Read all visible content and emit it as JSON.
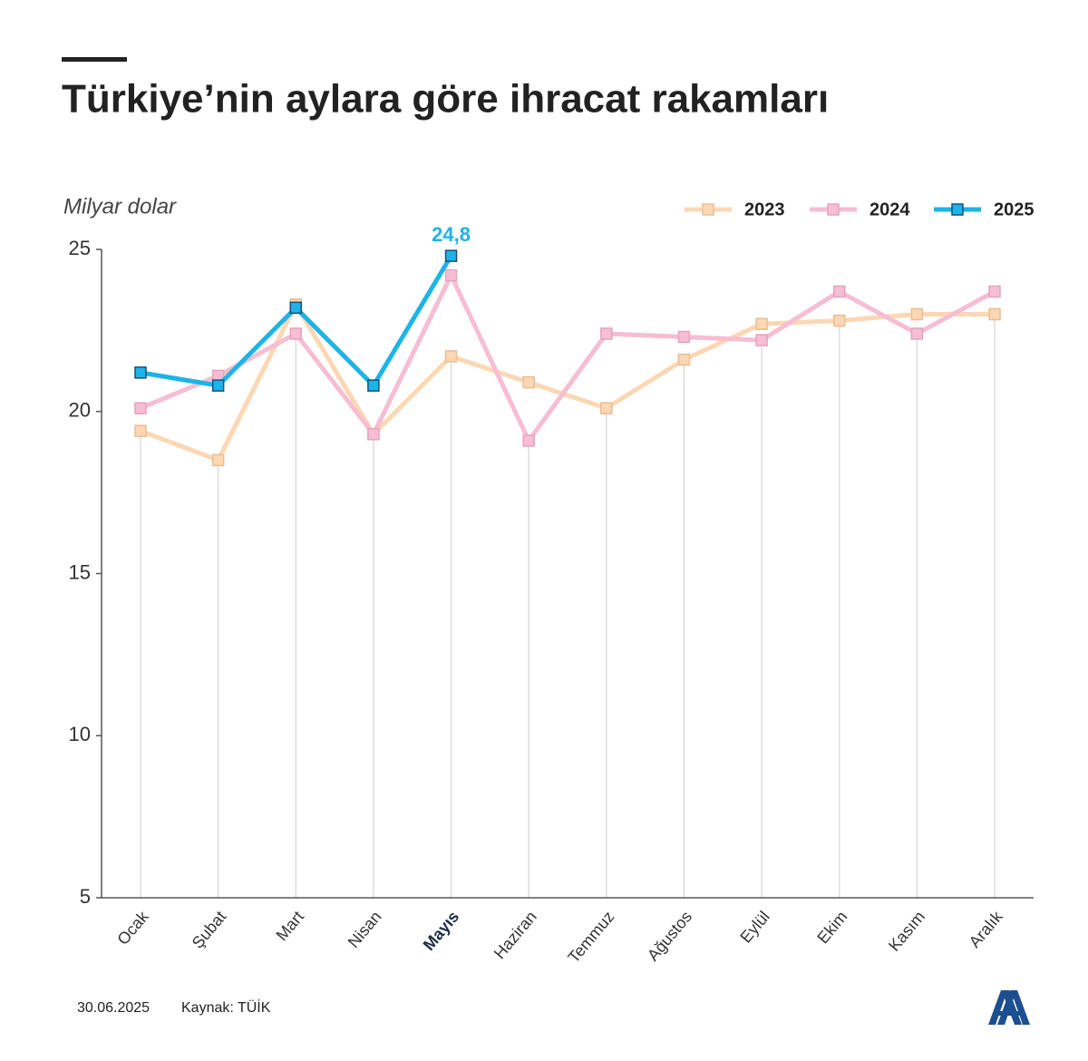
{
  "chart_data": {
    "type": "line",
    "title": "Türkiye’nin aylara göre ihracat rakamları",
    "y_axis_label": "Milyar dolar",
    "categories": [
      "Ocak",
      "Şubat",
      "Mart",
      "Nisan",
      "Mayıs",
      "Haziran",
      "Temmuz",
      "Ağustos",
      "Eylül",
      "Ekim",
      "Kasım",
      "Aralık"
    ],
    "highlight_index": 4,
    "series": [
      {
        "name": "2023",
        "color": "#fcd7b4",
        "values": [
          19.4,
          18.5,
          23.3,
          19.3,
          21.7,
          20.9,
          20.1,
          21.6,
          22.7,
          22.8,
          23.0,
          23.0
        ]
      },
      {
        "name": "2024",
        "color": "#f6bdd3",
        "values": [
          20.1,
          21.1,
          22.4,
          19.3,
          24.2,
          19.1,
          22.4,
          22.3,
          22.2,
          23.7,
          22.4,
          23.7
        ]
      },
      {
        "name": "2025",
        "color": "#1cb4e8",
        "values": [
          21.2,
          20.8,
          23.2,
          20.8,
          24.8,
          null,
          null,
          null,
          null,
          null,
          null,
          null
        ],
        "value_labels": [
          null,
          null,
          null,
          null,
          "24,8",
          null,
          null,
          null,
          null,
          null,
          null,
          null
        ]
      }
    ],
    "ylim": [
      5,
      25
    ],
    "yticks": [
      5,
      10,
      15,
      20,
      25
    ],
    "grid": false,
    "legend": "top-right",
    "date": "30.06.2025",
    "source": "Kaynak: TÜİK"
  }
}
